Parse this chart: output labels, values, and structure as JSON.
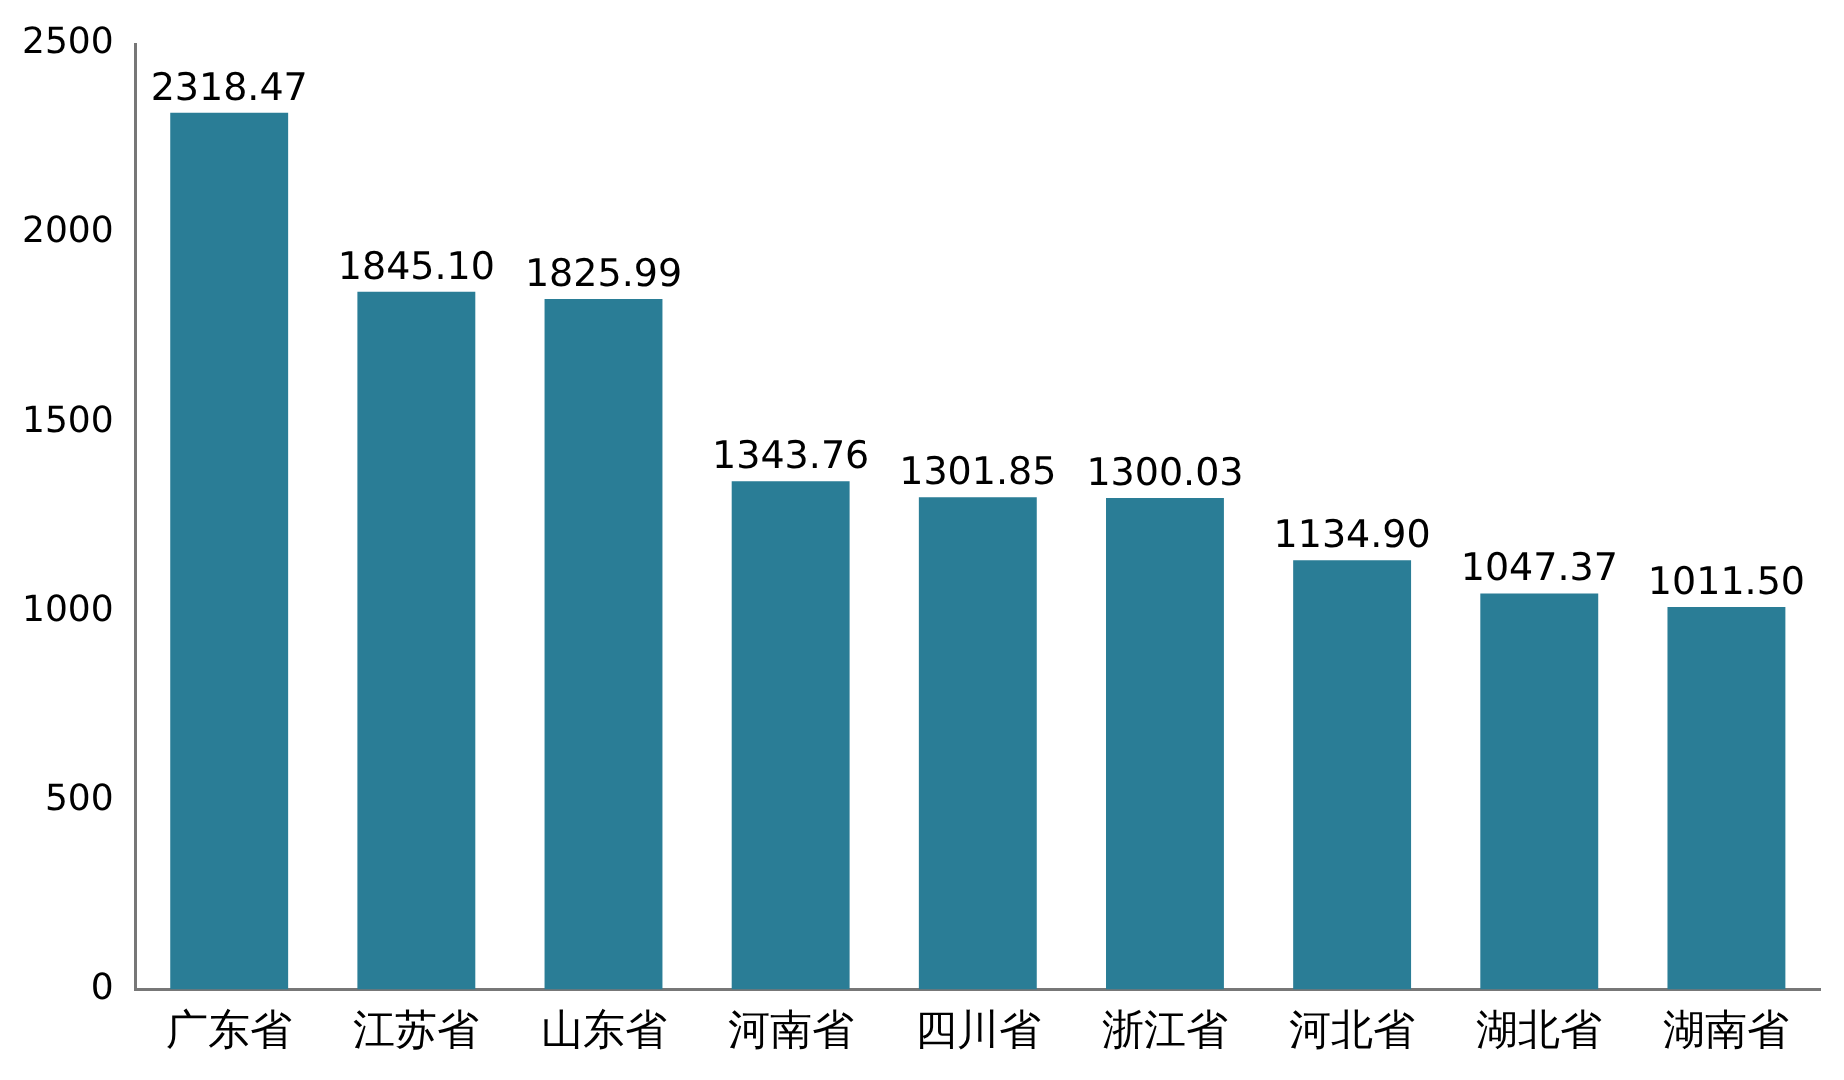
{
  "chart_data": {
    "type": "bar",
    "categories": [
      "广东省",
      "江苏省",
      "山东省",
      "河南省",
      "四川省",
      "浙江省",
      "河北省",
      "湖北省",
      "湖南省"
    ],
    "values": [
      2318.47,
      1845.1,
      1825.99,
      1343.76,
      1301.85,
      1300.03,
      1134.9,
      1047.37,
      1011.5
    ],
    "value_labels": [
      "2318.47",
      "1845.10",
      "1825.99",
      "1343.76",
      "1301.85",
      "1300.03",
      "1134.90",
      "1047.37",
      "1011.50"
    ],
    "color": "#2a7d96",
    "ylim": [
      0,
      2500
    ],
    "yticks": [
      0,
      500,
      1000,
      1500,
      2000,
      2500
    ],
    "grid": false
  }
}
